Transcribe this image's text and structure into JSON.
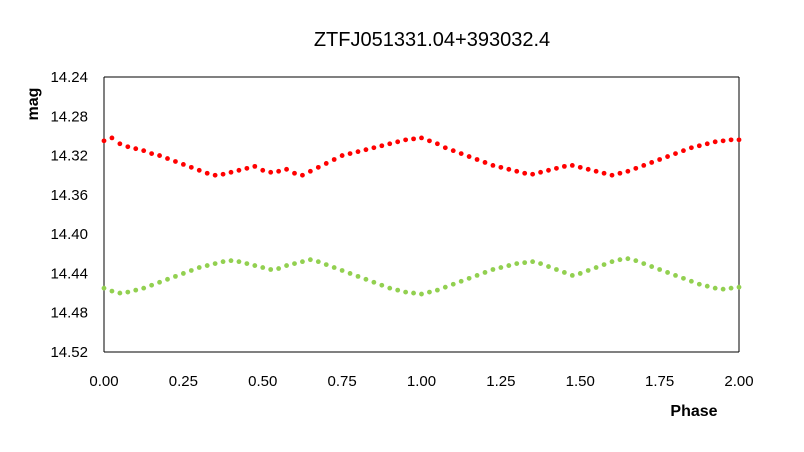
{
  "chart_data": {
    "type": "scatter",
    "title": "ZTFJ051331.04+393032.4",
    "xlabel": "Phase",
    "ylabel": "mag",
    "xlim": [
      0.0,
      2.0
    ],
    "ylim": [
      14.24,
      14.52
    ],
    "y_inverted": true,
    "xticks": [
      "0.00",
      "0.25",
      "0.50",
      "0.75",
      "1.00",
      "1.25",
      "1.50",
      "1.75",
      "2.00"
    ],
    "yticks": [
      "14.24",
      "14.28",
      "14.32",
      "14.36",
      "14.40",
      "14.44",
      "14.48",
      "14.52"
    ],
    "grid": false,
    "legend": "none",
    "series": [
      {
        "color": "#ff0000",
        "x": [
          0.0,
          0.025,
          0.05,
          0.075,
          0.1,
          0.125,
          0.15,
          0.175,
          0.2,
          0.225,
          0.25,
          0.275,
          0.3,
          0.325,
          0.35,
          0.375,
          0.4,
          0.425,
          0.45,
          0.475,
          0.5,
          0.525,
          0.55,
          0.575,
          0.6,
          0.625,
          0.65,
          0.675,
          0.7,
          0.725,
          0.75,
          0.775,
          0.8,
          0.825,
          0.85,
          0.875,
          0.9,
          0.925,
          0.95,
          0.975,
          1.0,
          1.025,
          1.05,
          1.075,
          1.1,
          1.125,
          1.15,
          1.175,
          1.2,
          1.225,
          1.25,
          1.275,
          1.3,
          1.325,
          1.35,
          1.375,
          1.4,
          1.425,
          1.45,
          1.475,
          1.5,
          1.525,
          1.55,
          1.575,
          1.6,
          1.625,
          1.65,
          1.675,
          1.7,
          1.725,
          1.75,
          1.775,
          1.8,
          1.825,
          1.85,
          1.875,
          1.9,
          1.925,
          1.95,
          1.975,
          2.0
        ],
        "y": [
          14.305,
          14.302,
          14.308,
          14.311,
          14.313,
          14.315,
          14.318,
          14.32,
          14.323,
          14.326,
          14.329,
          14.332,
          14.335,
          14.338,
          14.34,
          14.339,
          14.337,
          14.335,
          14.333,
          14.331,
          14.335,
          14.337,
          14.336,
          14.334,
          14.338,
          14.34,
          14.336,
          14.332,
          14.328,
          14.324,
          14.32,
          14.318,
          14.316,
          14.314,
          14.312,
          14.31,
          14.308,
          14.306,
          14.304,
          14.303,
          14.302,
          14.305,
          14.308,
          14.312,
          14.315,
          14.318,
          14.321,
          14.324,
          14.327,
          14.33,
          14.332,
          14.334,
          14.336,
          14.338,
          14.339,
          14.337,
          14.335,
          14.333,
          14.331,
          14.33,
          14.332,
          14.334,
          14.336,
          14.338,
          14.34,
          14.338,
          14.336,
          14.333,
          14.33,
          14.327,
          14.324,
          14.321,
          14.318,
          14.315,
          14.312,
          14.31,
          14.308,
          14.306,
          14.305,
          14.304,
          14.304
        ]
      },
      {
        "color": "#92d050",
        "x": [
          0.0,
          0.025,
          0.05,
          0.075,
          0.1,
          0.125,
          0.15,
          0.175,
          0.2,
          0.225,
          0.25,
          0.275,
          0.3,
          0.325,
          0.35,
          0.375,
          0.4,
          0.425,
          0.45,
          0.475,
          0.5,
          0.525,
          0.55,
          0.575,
          0.6,
          0.625,
          0.65,
          0.675,
          0.7,
          0.725,
          0.75,
          0.775,
          0.8,
          0.825,
          0.85,
          0.875,
          0.9,
          0.925,
          0.95,
          0.975,
          1.0,
          1.025,
          1.05,
          1.075,
          1.1,
          1.125,
          1.15,
          1.175,
          1.2,
          1.225,
          1.25,
          1.275,
          1.3,
          1.325,
          1.35,
          1.375,
          1.4,
          1.425,
          1.45,
          1.475,
          1.5,
          1.525,
          1.55,
          1.575,
          1.6,
          1.625,
          1.65,
          1.675,
          1.7,
          1.725,
          1.75,
          1.775,
          1.8,
          1.825,
          1.85,
          1.875,
          1.9,
          1.925,
          1.95,
          1.975,
          2.0
        ],
        "y": [
          14.455,
          14.458,
          14.46,
          14.459,
          14.457,
          14.455,
          14.452,
          14.449,
          14.446,
          14.443,
          14.44,
          14.437,
          14.434,
          14.432,
          14.43,
          14.428,
          14.427,
          14.428,
          14.43,
          14.432,
          14.434,
          14.436,
          14.435,
          14.432,
          14.43,
          14.428,
          14.426,
          14.428,
          14.431,
          14.434,
          14.437,
          14.44,
          14.443,
          14.446,
          14.449,
          14.452,
          14.455,
          14.457,
          14.459,
          14.46,
          14.461,
          14.459,
          14.457,
          14.454,
          14.451,
          14.448,
          14.445,
          14.442,
          14.439,
          14.436,
          14.434,
          14.432,
          14.43,
          14.429,
          14.428,
          14.43,
          14.433,
          14.436,
          14.439,
          14.442,
          14.44,
          14.437,
          14.434,
          14.431,
          14.428,
          14.426,
          14.425,
          14.427,
          14.43,
          14.433,
          14.436,
          14.439,
          14.442,
          14.445,
          14.448,
          14.451,
          14.453,
          14.455,
          14.456,
          14.455,
          14.454
        ]
      }
    ]
  }
}
